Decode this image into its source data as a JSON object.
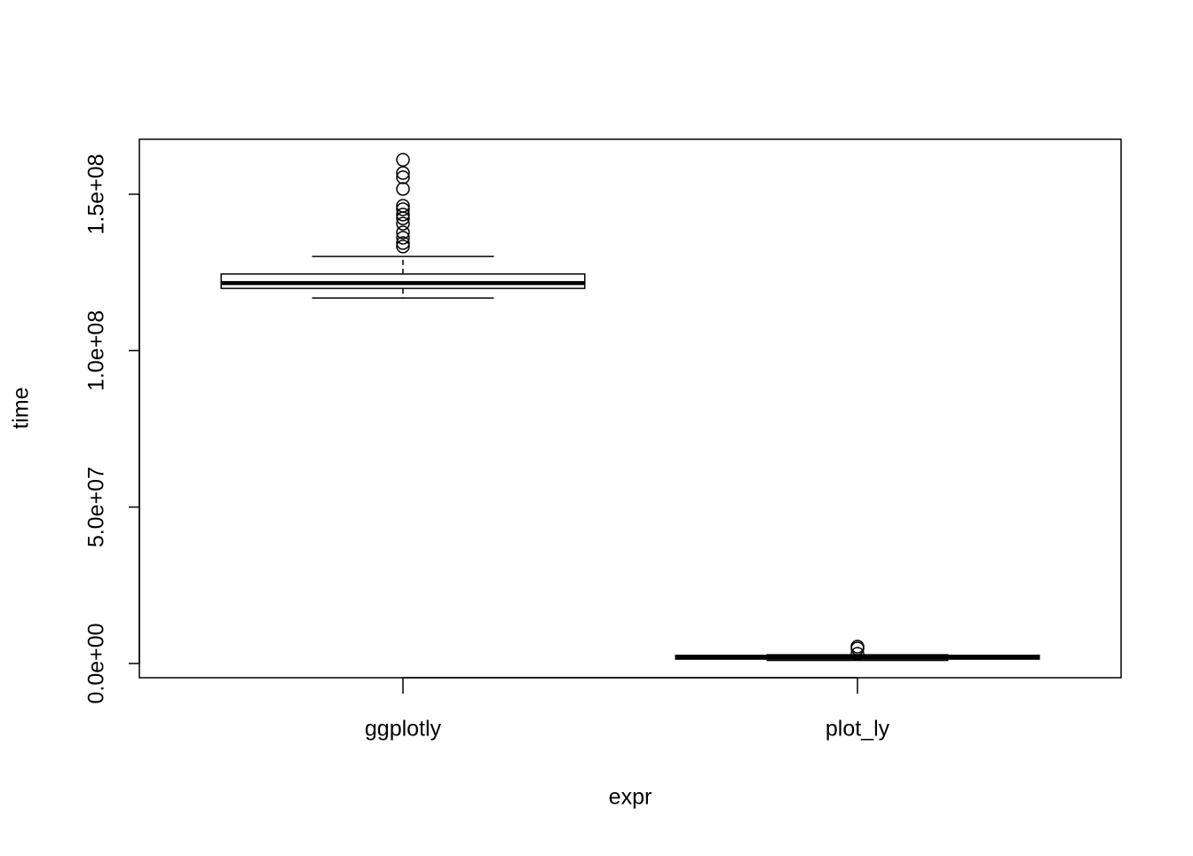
{
  "chart_data": {
    "type": "boxplot",
    "x_label": "expr",
    "y_label": "time",
    "categories": [
      "ggplotly",
      "plot_ly"
    ],
    "color": "#000000",
    "boxes": [
      {
        "min": 116800000,
        "q1": 119900000,
        "median": 121600000,
        "q3": 124500000,
        "max": 130100000,
        "outliers": [
          161000000,
          156800000,
          155400000,
          151700000,
          146300000,
          145200000,
          143500000,
          142300000,
          140600000,
          137800000,
          136100000,
          134400000,
          133300000
        ]
      },
      {
        "min": 1000000,
        "q1": 1400000,
        "median": 2000000,
        "q3": 2600000,
        "max": 2800000,
        "outliers": [
          5400000,
          4800000,
          3100000
        ]
      }
    ],
    "xlim": [
      0.42,
      2.58
    ],
    "ylim": [
      -4540000,
      167570000
    ],
    "yticks": [
      {
        "value": 0,
        "label": "0.0e+00"
      },
      {
        "value": 50000000,
        "label": "5.0e+07"
      },
      {
        "value": 100000000,
        "label": "1.0e+08"
      },
      {
        "value": 150000000,
        "label": "1.5e+08"
      }
    ]
  }
}
